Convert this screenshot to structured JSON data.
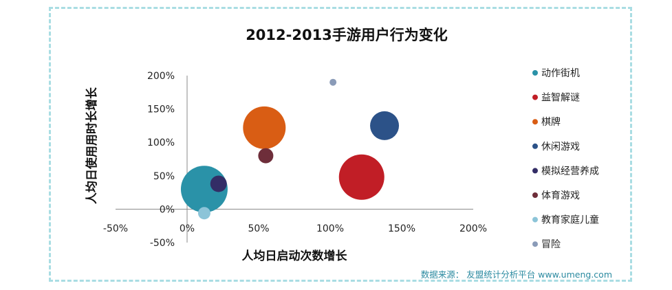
{
  "chart_data": {
    "type": "scatter",
    "subtype": "bubble",
    "title": "2012-2013手游用户行为变化",
    "xlabel": "人均日启动次数增长",
    "ylabel": "人均日使用用时长增长",
    "xlim": [
      -0.5,
      2.0
    ],
    "ylim": [
      -0.5,
      2.0
    ],
    "x_ticks": [
      "-50%",
      "0%",
      "50%",
      "100%",
      "150%",
      "200%"
    ],
    "y_ticks": [
      "-50%",
      "0%",
      "50%",
      "100%",
      "150%",
      "200%"
    ],
    "grid": false,
    "legend_position": "right",
    "series": [
      {
        "name": "动作街机",
        "color": "#2a92a8",
        "x": 0.12,
        "y": 0.3,
        "size": 34
      },
      {
        "name": "益智解谜",
        "color": "#c11e26",
        "x": 1.22,
        "y": 0.48,
        "size": 33
      },
      {
        "name": "棋牌",
        "color": "#d95d14",
        "x": 0.54,
        "y": 1.22,
        "size": 31
      },
      {
        "name": "休闲游戏",
        "color": "#2c5288",
        "x": 1.38,
        "y": 1.25,
        "size": 21
      },
      {
        "name": "模拟经营养成",
        "color": "#332d66",
        "x": 0.22,
        "y": 0.38,
        "size": 12
      },
      {
        "name": "体育游戏",
        "color": "#6e2e3a",
        "x": 0.55,
        "y": 0.8,
        "size": 11
      },
      {
        "name": "教育家庭儿童",
        "color": "#8cc4d8",
        "x": 0.12,
        "y": -0.06,
        "size": 9
      },
      {
        "name": "冒险",
        "color": "#8a9bb8",
        "x": 1.02,
        "y": 1.9,
        "size": 5
      }
    ]
  },
  "source": "数据来源：  友盟统计分析平台 www.umeng.com"
}
